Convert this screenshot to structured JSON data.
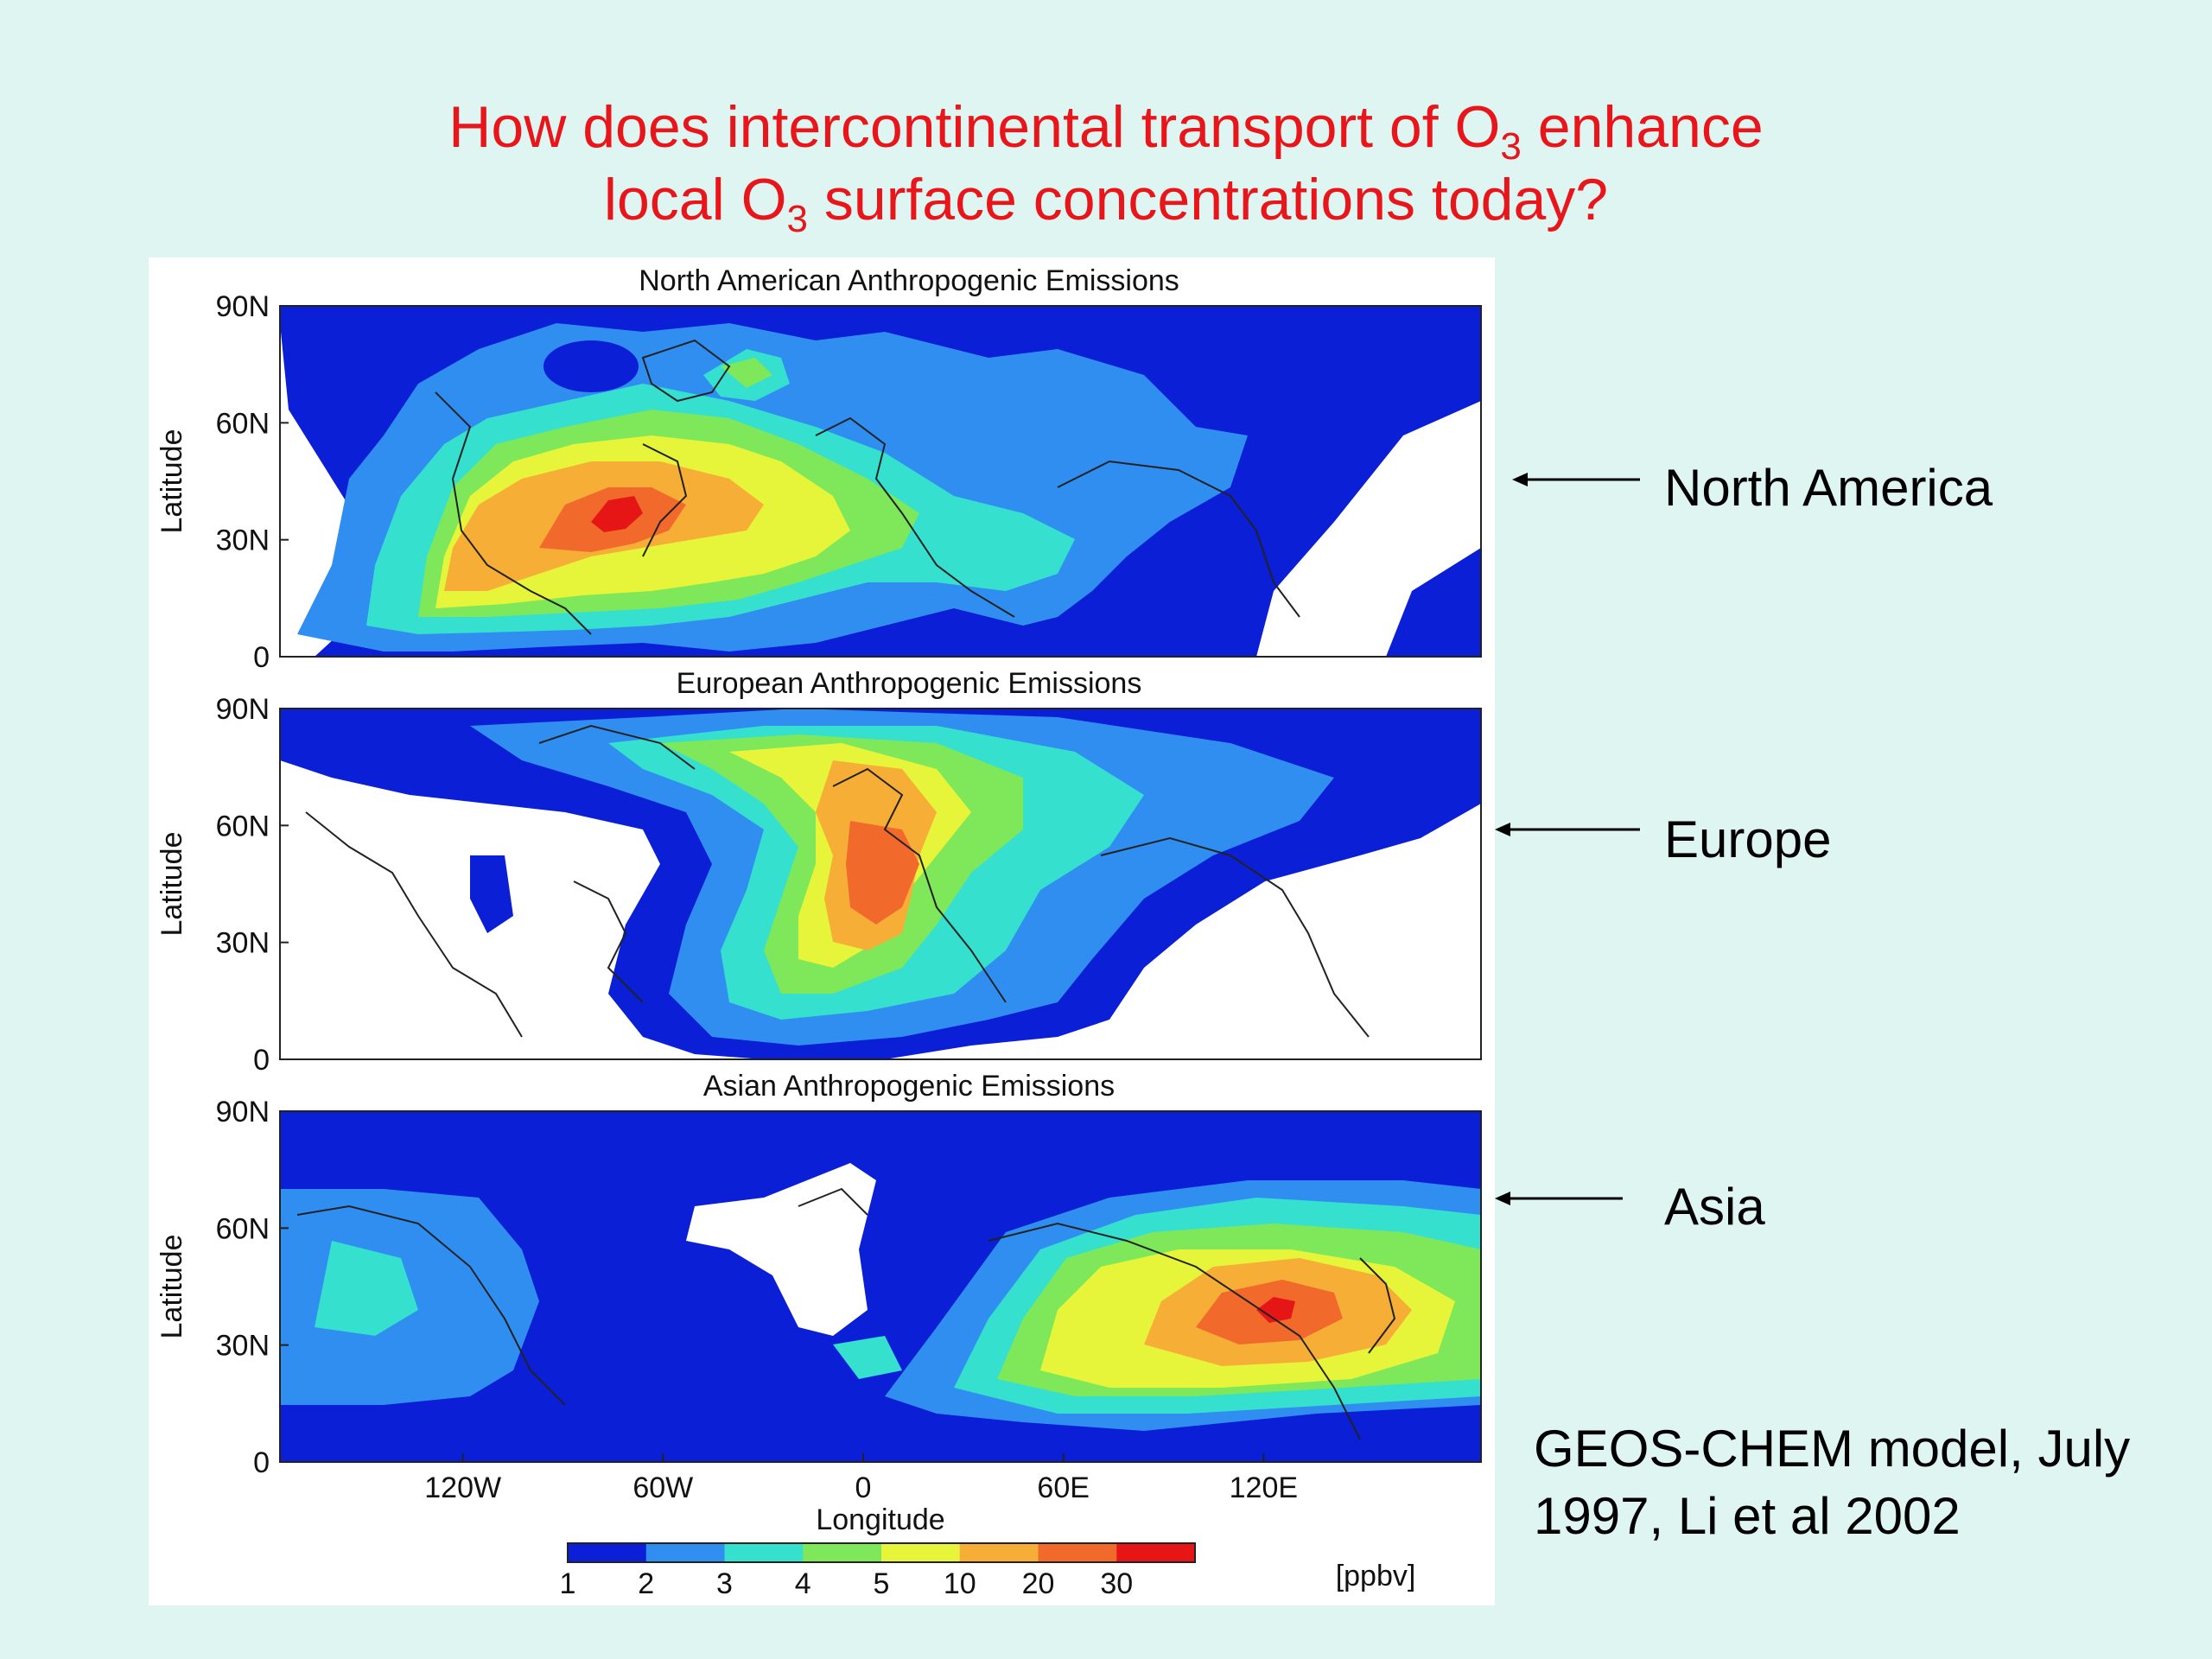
{
  "slide": {
    "title_line1_a": "How does intercontinental transport of O",
    "title_line1_sub": "3",
    "title_line1_b": " enhance",
    "title_line2_a": "local O",
    "title_line2_sub": "3",
    "title_line2_b": " surface concentrations today?"
  },
  "panels": [
    {
      "title": "North American Anthropogenic Emissions",
      "arrow_label": "North America"
    },
    {
      "title": "European Anthropogenic Emissions",
      "arrow_label": "Europe"
    },
    {
      "title": "Asian Anthropogenic Emissions",
      "arrow_label": "Asia"
    }
  ],
  "axes": {
    "ylabel": "Latitude",
    "xlabel": "Longitude",
    "yticks": [
      "90N",
      "60N",
      "30N",
      "0"
    ],
    "xticks": [
      "120W",
      "60W",
      "0",
      "60E",
      "120E"
    ]
  },
  "colorbar": {
    "ticks": [
      "1",
      "2",
      "3",
      "4",
      "5",
      "10",
      "20",
      "30"
    ],
    "unit": "[ppbv]",
    "colors": [
      "#0a1fd6",
      "#2f8ef0",
      "#35e0cf",
      "#7ee85a",
      "#e6f53a",
      "#f7ae36",
      "#f26a2b",
      "#e61616"
    ]
  },
  "note": "GEOS-CHEM model, July 1997, Li et al 2002"
}
